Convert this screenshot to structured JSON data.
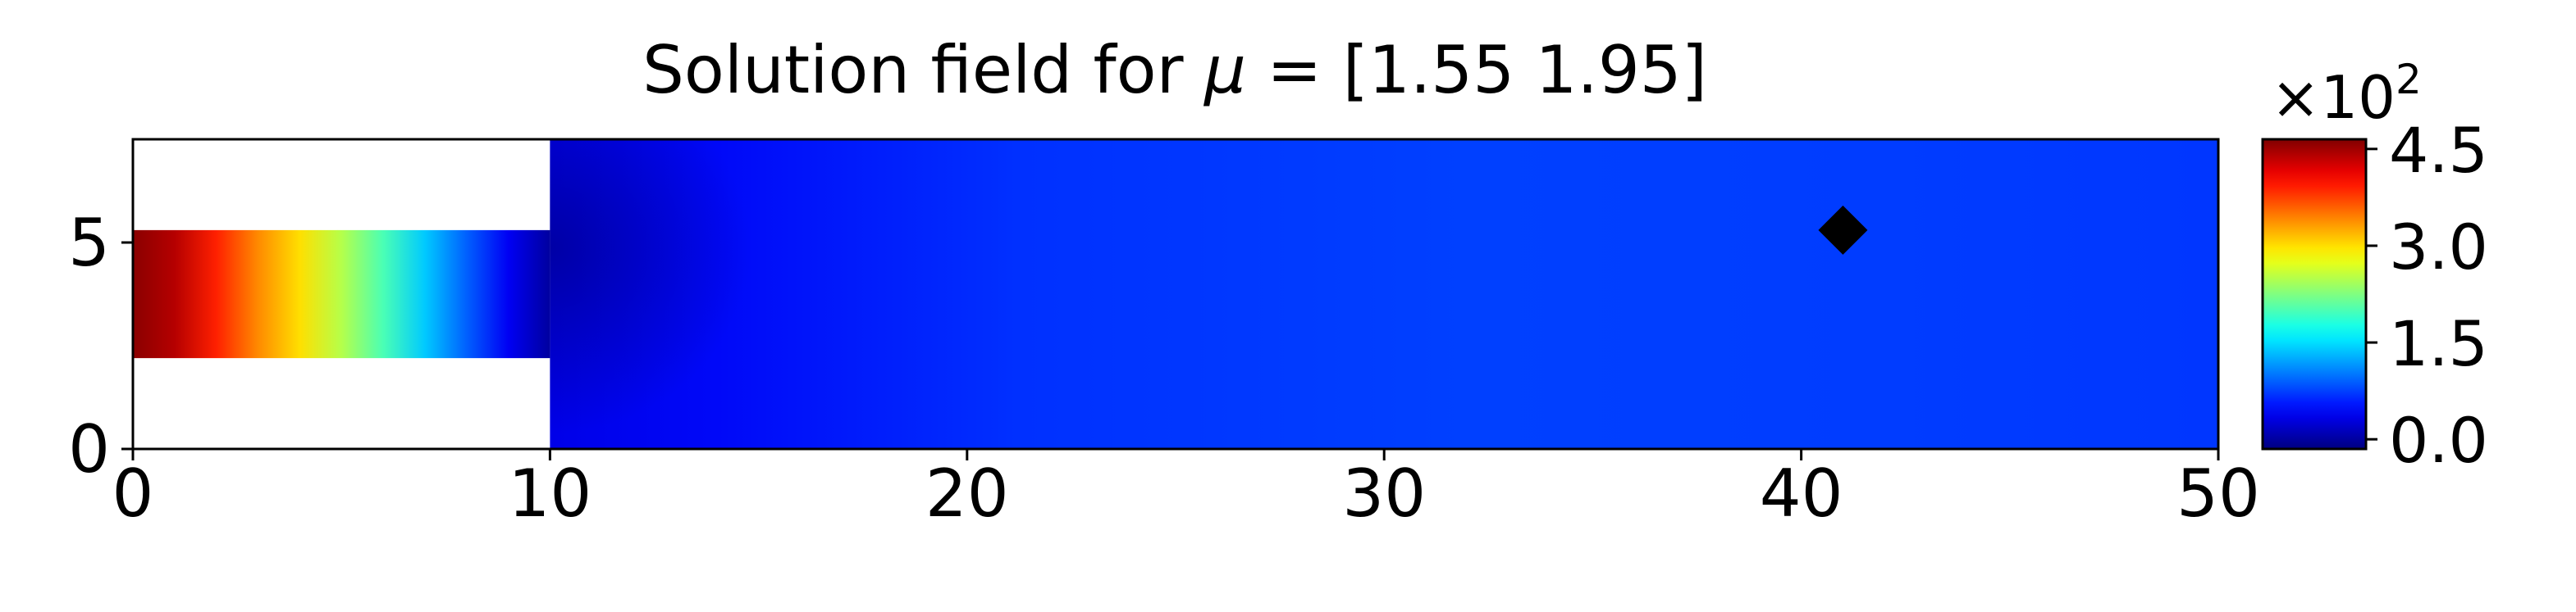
{
  "chart_data": {
    "type": "heatmap",
    "title": {
      "prefix": "Solution field for ",
      "symbol": "μ",
      "suffix": " = [1.55 1.95]"
    },
    "xlabel": "",
    "ylabel": "",
    "xlim": [
      0,
      50
    ],
    "ylim": [
      0,
      7.5
    ],
    "x_ticks": [
      0,
      10,
      20,
      30,
      40,
      50
    ],
    "x_tick_labels": [
      "0",
      "10",
      "20",
      "30",
      "40",
      "50"
    ],
    "y_ticks": [
      0,
      5
    ],
    "y_tick_labels": [
      "0",
      "5"
    ],
    "grid": false,
    "colormap": "jet",
    "domain": {
      "inlet_channel": {
        "x": [
          0,
          10
        ],
        "y": [
          2.2,
          5.3
        ]
      },
      "main_chamber": {
        "x": [
          10,
          50
        ],
        "y": [
          0,
          7.5
        ]
      }
    },
    "field": {
      "inlet_profile": [
        {
          "x": 0,
          "value": 4.6
        },
        {
          "x": 1,
          "value": 4.4
        },
        {
          "x": 2,
          "value": 3.9
        },
        {
          "x": 3,
          "value": 3.4
        },
        {
          "x": 4,
          "value": 3.0
        },
        {
          "x": 5,
          "value": 2.5
        },
        {
          "x": 6,
          "value": 2.0
        },
        {
          "x": 7,
          "value": 1.4
        },
        {
          "x": 8,
          "value": 0.9
        },
        {
          "x": 9,
          "value": 0.4
        },
        {
          "x": 10,
          "value": 0.0
        }
      ],
      "chamber_value": 0.05
    },
    "marker": {
      "shape": "diamond",
      "x": 41,
      "y": 5.3,
      "color": "#000000"
    },
    "colorbar": {
      "range": [
        -0.15,
        4.65
      ],
      "ticks": [
        0.0,
        1.5,
        3.0,
        4.5
      ],
      "tick_labels": [
        "0.0",
        "1.5",
        "3.0",
        "4.5"
      ],
      "multiplier_base": "×10",
      "multiplier_exp": "2"
    }
  }
}
